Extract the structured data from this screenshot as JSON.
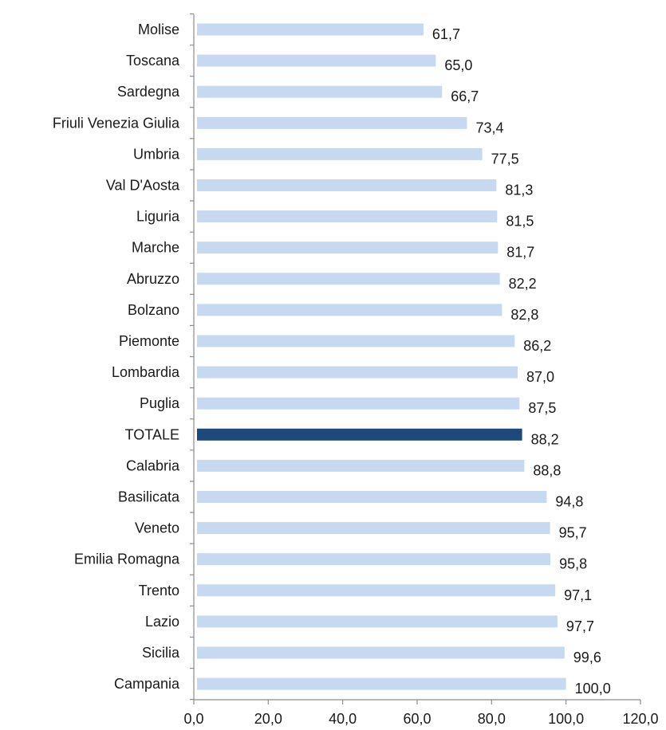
{
  "chart_data": {
    "type": "bar",
    "orientation": "horizontal",
    "title": "",
    "xlabel": "",
    "ylabel": "",
    "xlim": [
      0,
      120
    ],
    "x_ticks": [
      "0,0",
      "20,0",
      "40,0",
      "60,0",
      "80,0",
      "100,0",
      "120,0"
    ],
    "grid": false,
    "legend": "none",
    "categories": [
      "Molise",
      "Toscana",
      "Sardegna",
      "Friuli Venezia Giulia",
      "Umbria",
      "Val D'Aosta",
      "Liguria",
      "Marche",
      "Abruzzo",
      "Bolzano",
      "Piemonte",
      "Lombardia",
      "Puglia",
      "TOTALE",
      "Calabria",
      "Basilicata",
      "Veneto",
      "Emilia Romagna",
      "Trento",
      "Lazio",
      "Sicilia",
      "Campania"
    ],
    "values": [
      61.7,
      65.0,
      66.7,
      73.4,
      77.5,
      81.3,
      81.5,
      81.7,
      82.2,
      82.8,
      86.2,
      87.0,
      87.5,
      88.2,
      88.8,
      94.8,
      95.7,
      95.8,
      97.1,
      97.7,
      99.6,
      100.0
    ],
    "value_labels": [
      "61,7",
      "65,0",
      "66,7",
      "73,4",
      "77,5",
      "81,3",
      "81,5",
      "81,7",
      "82,2",
      "82,8",
      "86,2",
      "87,0",
      "87,5",
      "88,2",
      "88,8",
      "94,8",
      "95,7",
      "95,8",
      "97,1",
      "97,7",
      "99,6",
      "100,0"
    ],
    "highlight_category": "TOTALE",
    "colors": {
      "bar": "#c6d9f1",
      "highlight_bar": "#1f497d"
    }
  }
}
